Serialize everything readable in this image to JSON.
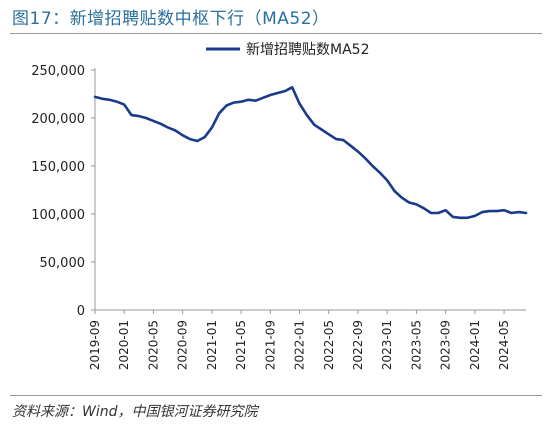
{
  "figure": {
    "title": "图17：新增招聘贴数中枢下行（MA52）",
    "source": "资料来源：Wind，中国银河证券研究院"
  },
  "chart_data": {
    "type": "line",
    "title": "",
    "xlabel": "",
    "ylabel": "",
    "ylim": [
      0,
      250000
    ],
    "yticks": [
      0,
      50000,
      100000,
      150000,
      200000,
      250000
    ],
    "ytick_labels": [
      "0",
      "50,000",
      "100,000",
      "150,000",
      "200,000",
      "250,000"
    ],
    "xticks": [
      "2019-09",
      "2020-01",
      "2020-05",
      "2020-09",
      "2021-01",
      "2021-05",
      "2021-09",
      "2022-01",
      "2022-05",
      "2022-09",
      "2023-01",
      "2023-05",
      "2023-09",
      "2024-01",
      "2024-05"
    ],
    "grid": false,
    "legend": "top-center",
    "series": [
      {
        "name": "新增招聘贴数MA52",
        "color": "#1a3a8c",
        "x": [
          "2019-09",
          "2019-10",
          "2019-11",
          "2019-12",
          "2020-01",
          "2020-02",
          "2020-03",
          "2020-04",
          "2020-05",
          "2020-06",
          "2020-07",
          "2020-08",
          "2020-09",
          "2020-10",
          "2020-11",
          "2020-12",
          "2021-01",
          "2021-02",
          "2021-03",
          "2021-04",
          "2021-05",
          "2021-06",
          "2021-07",
          "2021-08",
          "2021-09",
          "2021-10",
          "2021-11",
          "2021-12",
          "2022-01",
          "2022-02",
          "2022-03",
          "2022-04",
          "2022-05",
          "2022-06",
          "2022-07",
          "2022-08",
          "2022-09",
          "2022-10",
          "2022-11",
          "2022-12",
          "2023-01",
          "2023-02",
          "2023-03",
          "2023-04",
          "2023-05",
          "2023-06",
          "2023-07",
          "2023-08",
          "2023-09",
          "2023-10",
          "2023-11",
          "2023-12",
          "2024-01",
          "2024-02",
          "2024-03",
          "2024-04",
          "2024-05",
          "2024-06",
          "2024-07",
          "2024-08"
        ],
        "values": [
          222000,
          220000,
          219000,
          217000,
          214000,
          203000,
          202000,
          200000,
          197000,
          194000,
          190000,
          187000,
          182000,
          178000,
          176000,
          180000,
          190000,
          205000,
          213000,
          216000,
          217000,
          219000,
          218000,
          221000,
          224000,
          226000,
          228000,
          232000,
          215000,
          203000,
          193000,
          188000,
          183000,
          178000,
          177000,
          171000,
          165000,
          158000,
          150000,
          143000,
          135000,
          124000,
          117000,
          112000,
          110000,
          106000,
          101000,
          101000,
          104000,
          97000,
          96000,
          96000,
          98000,
          102000,
          103000,
          103000,
          104000,
          101000,
          102000,
          101000
        ]
      }
    ]
  }
}
